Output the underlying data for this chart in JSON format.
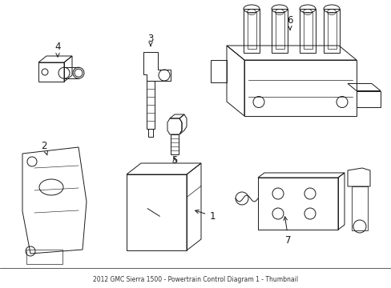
{
  "background_color": "#ffffff",
  "line_color": "#1a1a1a",
  "line_width": 0.7,
  "label_fontsize": 8.5,
  "fig_width": 4.89,
  "fig_height": 3.6,
  "dpi": 100
}
